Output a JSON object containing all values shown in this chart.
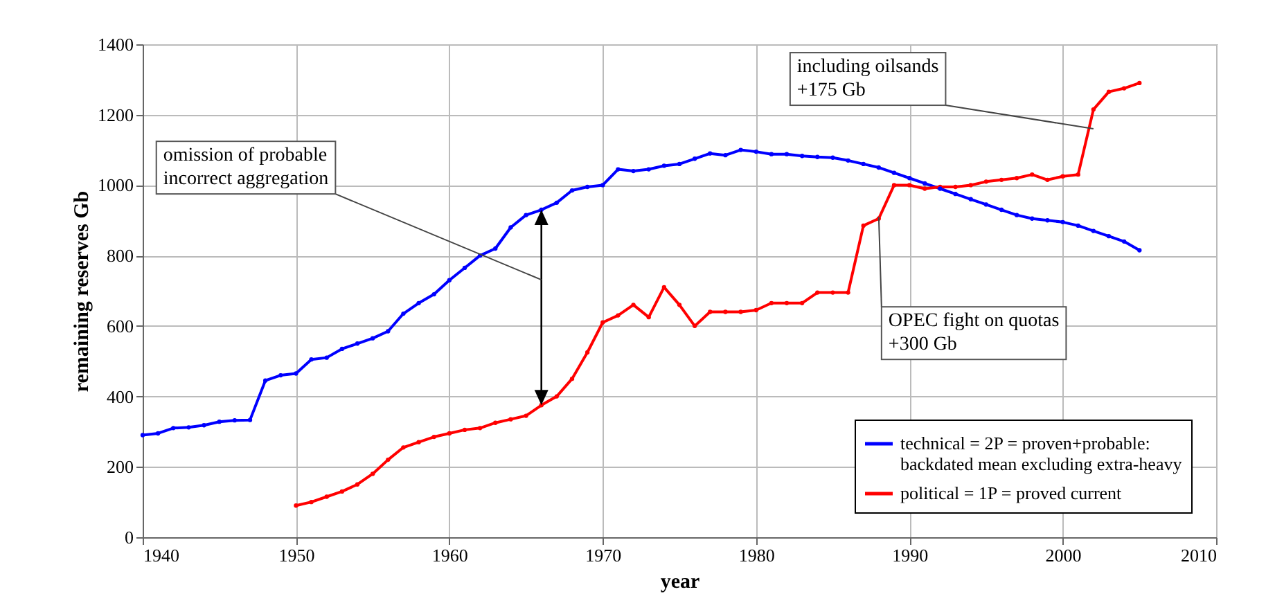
{
  "chart_data": {
    "type": "line",
    "xlabel": "year",
    "ylabel": "remaining reserves Gb",
    "xlim": [
      1940,
      2010
    ],
    "xticks": [
      1940,
      1950,
      1960,
      1970,
      1980,
      1990,
      2000,
      2010
    ],
    "ylim": [
      0,
      1400
    ],
    "yticks": [
      0,
      200,
      400,
      600,
      800,
      1000,
      1200,
      1400
    ],
    "grid": true,
    "legend": "bottom right",
    "marker": "circle",
    "line_style": "solid",
    "annotations": [
      "omission of probable\nincorrect aggregation",
      {
        "text": "OPEC fight on quotas\n+300 Gb",
        "x": 1988,
        "y": 910
      },
      {
        "text": "including oilsands\n+175 Gb",
        "x": 2002,
        "y": 1160
      }
    ],
    "series": [
      {
        "name": "technical = 2P = proven+probable:\nbackdated mean excluding extra-heavy",
        "color": "#0000ff",
        "x": [
          1940,
          1941,
          1942,
          1943,
          1944,
          1945,
          1946,
          1947,
          1948,
          1949,
          1950,
          1951,
          1952,
          1953,
          1954,
          1955,
          1956,
          1957,
          1958,
          1959,
          1960,
          1961,
          1962,
          1963,
          1964,
          1965,
          1966,
          1967,
          1968,
          1969,
          1970,
          1971,
          1972,
          1973,
          1974,
          1975,
          1976,
          1977,
          1978,
          1979,
          1980,
          1981,
          1982,
          1983,
          1984,
          1985,
          1986,
          1987,
          1988,
          1989,
          1990,
          1991,
          1992,
          1993,
          1994,
          1995,
          1996,
          1997,
          1998,
          1999,
          2000,
          2001,
          2002,
          2003,
          2004,
          2005
        ],
        "values": [
          290,
          295,
          310,
          312,
          318,
          328,
          332,
          333,
          445,
          460,
          465,
          505,
          510,
          535,
          550,
          565,
          585,
          635,
          665,
          690,
          730,
          765,
          800,
          820,
          880,
          915,
          930,
          950,
          985,
          995,
          1000,
          1045,
          1040,
          1045,
          1055,
          1060,
          1075,
          1090,
          1085,
          1100,
          1095,
          1088,
          1088,
          1083,
          1080,
          1078,
          1070,
          1060,
          1050,
          1035,
          1020,
          1005,
          990,
          975,
          960,
          945,
          930,
          915,
          905,
          900,
          895,
          885,
          870,
          855,
          840,
          815
        ]
      },
      {
        "name": "political = 1P = proved current",
        "color": "#ff0000",
        "x": [
          1950,
          1951,
          1952,
          1953,
          1954,
          1955,
          1956,
          1957,
          1958,
          1959,
          1960,
          1961,
          1962,
          1963,
          1964,
          1965,
          1966,
          1967,
          1968,
          1969,
          1970,
          1971,
          1972,
          1973,
          1974,
          1975,
          1976,
          1977,
          1978,
          1979,
          1980,
          1981,
          1982,
          1983,
          1984,
          1985,
          1986,
          1987,
          1988,
          1989,
          1990,
          1991,
          1992,
          1993,
          1994,
          1995,
          1996,
          1997,
          1998,
          1999,
          2000,
          2001,
          2002,
          2003,
          2004,
          2005
        ],
        "values": [
          90,
          100,
          115,
          130,
          150,
          180,
          220,
          255,
          270,
          285,
          295,
          305,
          310,
          325,
          335,
          345,
          375,
          400,
          450,
          525,
          610,
          630,
          660,
          625,
          710,
          660,
          600,
          640,
          640,
          640,
          645,
          665,
          665,
          665,
          695,
          695,
          695,
          885,
          905,
          1000,
          1000,
          990,
          995,
          995,
          1000,
          1010,
          1015,
          1020,
          1030,
          1015,
          1025,
          1030,
          1215,
          1265,
          1275,
          1290
        ]
      }
    ]
  }
}
